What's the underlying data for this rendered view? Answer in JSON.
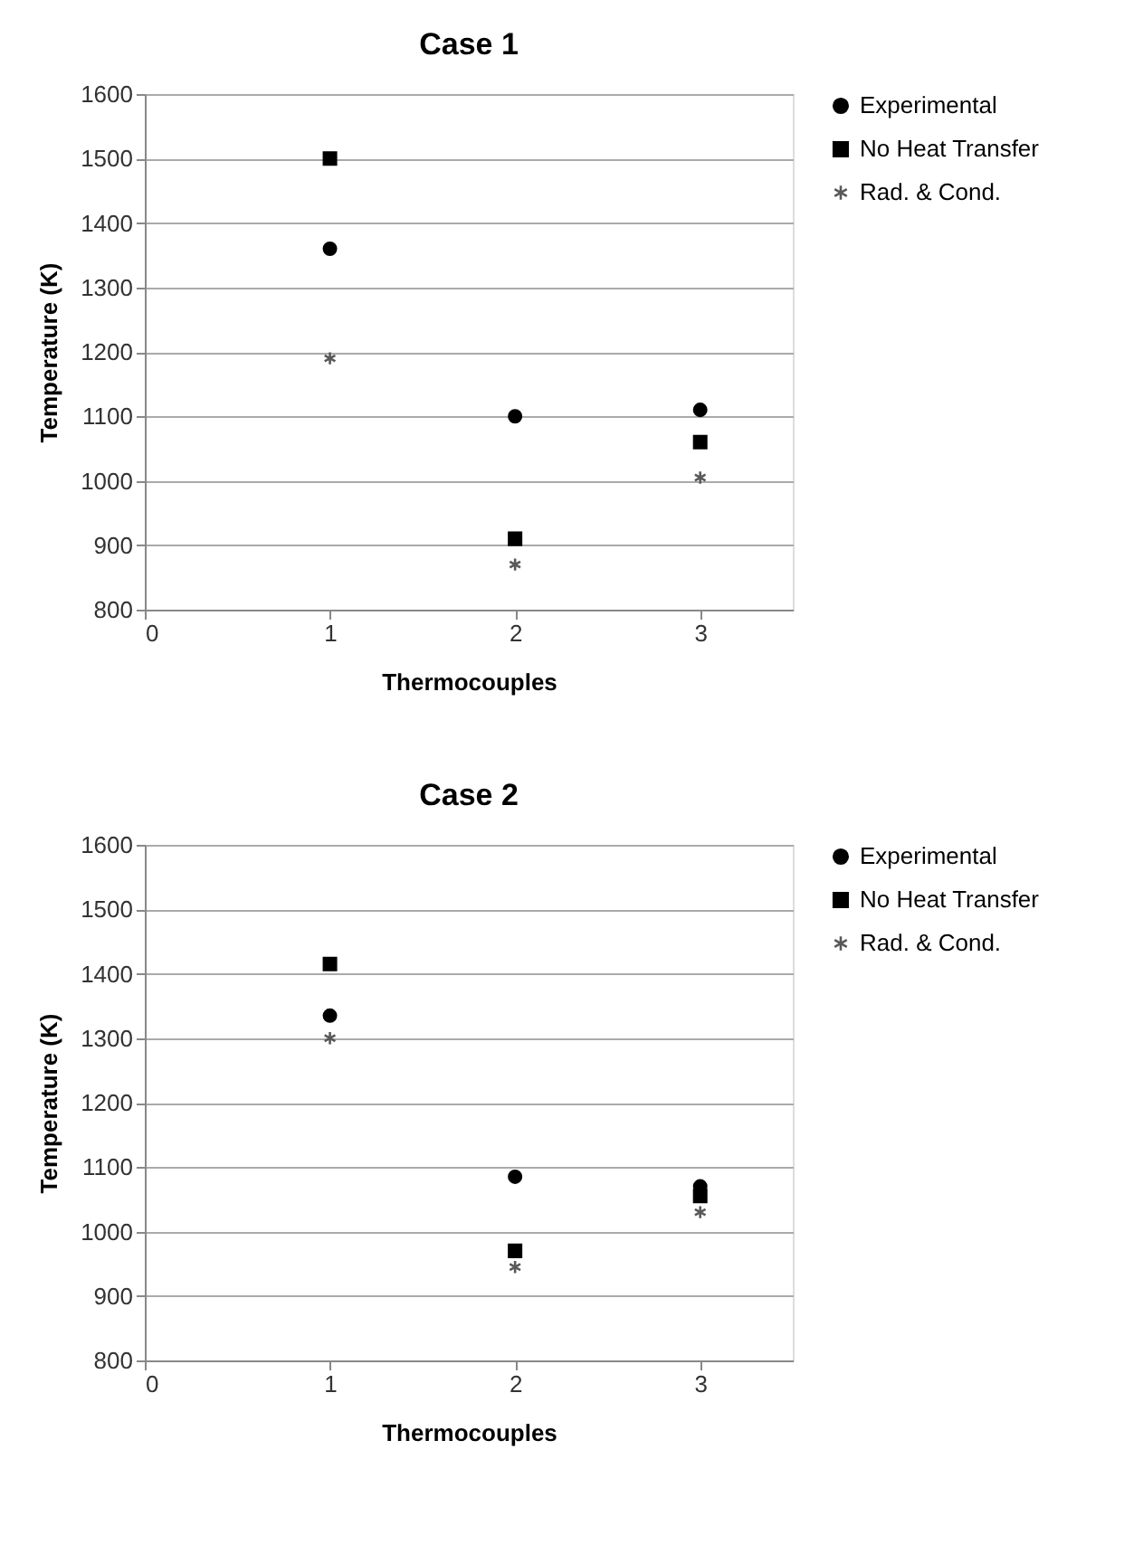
{
  "chart_data": [
    {
      "type": "scatter",
      "title": "Case 1",
      "xlabel": "Thermocouples",
      "ylabel": "Temperature (K)",
      "x": [
        1,
        2,
        3
      ],
      "xlim": [
        0,
        3.5
      ],
      "xticks": [
        0,
        1,
        2,
        3
      ],
      "ylim": [
        800,
        1600
      ],
      "yticks": [
        800,
        900,
        1000,
        1100,
        1200,
        1300,
        1400,
        1500,
        1600
      ],
      "grid": "y",
      "legend": "right",
      "series": [
        {
          "name": "Experimental",
          "color": "#000000",
          "marker": "circle",
          "values": [
            1360,
            1100,
            1110
          ]
        },
        {
          "name": "No Heat Transfer",
          "color": "#000000",
          "marker": "square",
          "values": [
            1500,
            910,
            1060
          ]
        },
        {
          "name": "Rad. & Cond.",
          "color": "#595959",
          "marker": "cross",
          "values": [
            1190,
            870,
            1005
          ]
        }
      ]
    },
    {
      "type": "scatter",
      "title": "Case 2",
      "xlabel": "Thermocouples",
      "ylabel": "Temperature (K)",
      "x": [
        1,
        2,
        3
      ],
      "xlim": [
        0,
        3.5
      ],
      "xticks": [
        0,
        1,
        2,
        3
      ],
      "ylim": [
        800,
        1600
      ],
      "yticks": [
        800,
        900,
        1000,
        1100,
        1200,
        1300,
        1400,
        1500,
        1600
      ],
      "grid": "y",
      "legend": "right",
      "series": [
        {
          "name": "Experimental",
          "color": "#000000",
          "marker": "circle",
          "values": [
            1335,
            1085,
            1070
          ]
        },
        {
          "name": "No Heat Transfer",
          "color": "#000000",
          "marker": "square",
          "values": [
            1415,
            970,
            1055
          ]
        },
        {
          "name": "Rad. & Cond.",
          "color": "#595959",
          "marker": "cross",
          "values": [
            1300,
            945,
            1030
          ]
        }
      ]
    }
  ]
}
